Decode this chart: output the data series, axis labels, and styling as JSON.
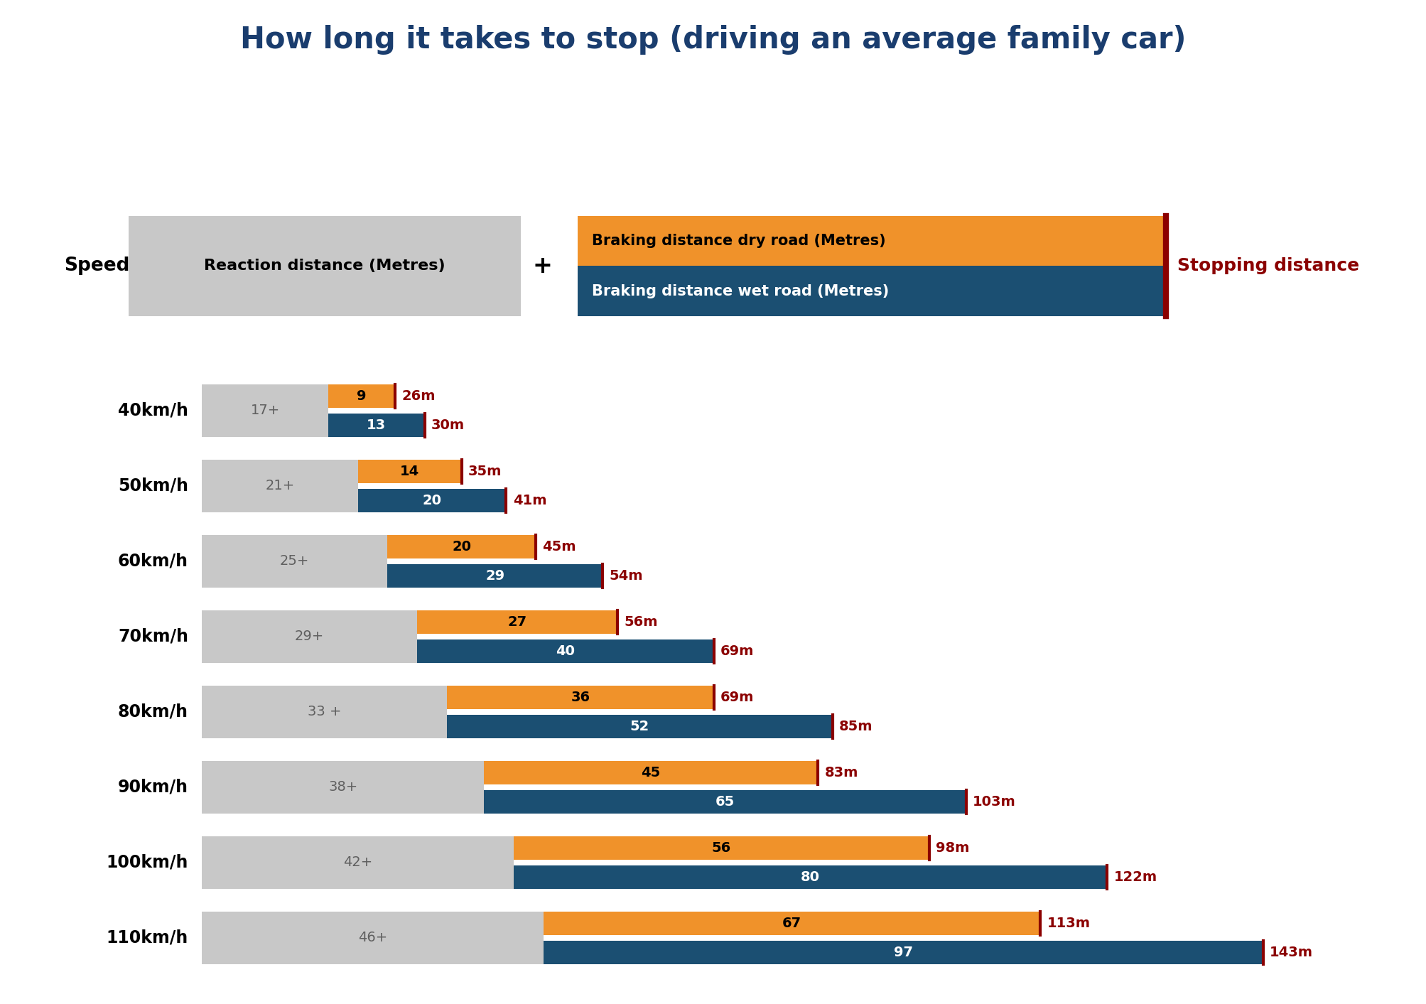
{
  "title": "How long it takes to stop (driving an average family car)",
  "title_color": "#1a3d6e",
  "title_fontsize": 30,
  "background_color": "#ffffff",
  "speeds": [
    "40km/h",
    "50km/h",
    "60km/h",
    "70km/h",
    "80km/h",
    "90km/h",
    "100km/h",
    "110km/h"
  ],
  "reaction_distances": [
    17,
    21,
    25,
    29,
    33,
    38,
    42,
    46
  ],
  "reaction_labels": [
    "17+",
    "21+",
    "25+",
    "29+",
    "33 +",
    "38+",
    "42+",
    "46+"
  ],
  "dry_braking": [
    9,
    14,
    20,
    27,
    36,
    45,
    56,
    67
  ],
  "wet_braking": [
    13,
    20,
    29,
    40,
    52,
    65,
    80,
    97
  ],
  "dry_stopping": [
    "26m",
    "35m",
    "45m",
    "56m",
    "69m",
    "83m",
    "98m",
    "113m"
  ],
  "wet_stopping": [
    "30m",
    "41m",
    "54m",
    "69m",
    "85m",
    "103m",
    "122m",
    "143m"
  ],
  "gray_color": "#c8c8c8",
  "orange_color": "#f0922a",
  "blue_color": "#1b4f72",
  "red_color": "#8b0000",
  "dark_navy": "#1a3d6e",
  "legend_reaction_label": "Reaction distance (Metres)",
  "legend_dry_label": "Braking distance dry road (Metres)",
  "legend_wet_label": "Braking distance wet road (Metres)",
  "legend_stopping_label": "Stopping distance",
  "speed_label": "Speed"
}
